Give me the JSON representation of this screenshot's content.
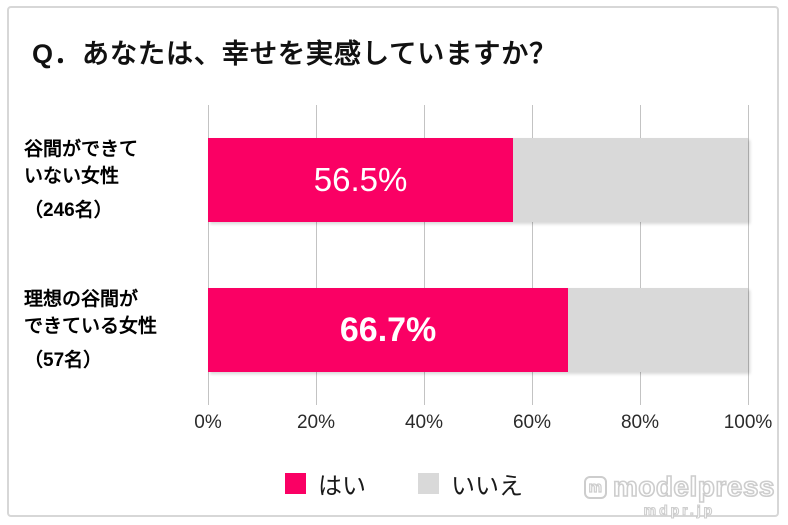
{
  "title": "Q．あなたは、幸せを実感していますか？",
  "chart_data": {
    "type": "bar",
    "orientation": "horizontal",
    "title": "Q．あなたは、幸せを実感していますか？",
    "categories": [
      "谷間ができていない女性（246名）",
      "理想の谷間ができている女性（57名）"
    ],
    "category_display": [
      {
        "lines": [
          "谷間ができて",
          "いない女性"
        ],
        "count": "（246名）"
      },
      {
        "lines": [
          "理想の谷間が",
          "できている女性"
        ],
        "count": "（57名）"
      }
    ],
    "series": [
      {
        "name": "はい",
        "color": "#FA0064",
        "values": [
          56.5,
          66.7
        ]
      },
      {
        "name": "いいえ",
        "color": "#D9D9D9",
        "values": [
          43.5,
          33.3
        ]
      }
    ],
    "value_labels": [
      {
        "text": "56.5%",
        "bold": false
      },
      {
        "text": "66.7%",
        "bold": true
      }
    ],
    "x_axis": {
      "min": 0,
      "max": 100,
      "tick_interval": 20,
      "tick_labels": [
        "0%",
        "20%",
        "40%",
        "60%",
        "80%",
        "100%"
      ]
    },
    "grid": true,
    "legend": {
      "position": "bottom",
      "items": [
        {
          "label": "はい",
          "color": "#FA0064"
        },
        {
          "label": "いいえ",
          "color": "#D9D9D9"
        }
      ]
    }
  },
  "watermark": {
    "logo_letter": "m",
    "brand": "modelpress",
    "domain": "mdpr.jp"
  },
  "colors": {
    "yes": "#FA0064",
    "no": "#D9D9D9",
    "grid": "#C3C3C3",
    "frame_border": "#D7D7D7",
    "axis_text": "#2B2B2B"
  }
}
